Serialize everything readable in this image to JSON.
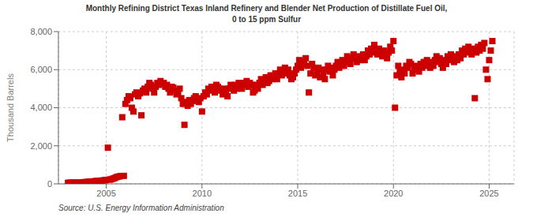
{
  "chart_data": {
    "type": "scatter",
    "title": "Monthly Refining District Texas Inland Refinery and Blender Net Production of Distillate Fuel Oil,\n0 to 15 ppm Sulfur",
    "ylabel": "Thousand Barrels",
    "annotations": [
      "Source: U.S. Energy Information Administration"
    ],
    "color": "#cc0000",
    "marker": "square",
    "grid": true,
    "xlim": [
      2002.5,
      2026.3
    ],
    "xticks": [
      2005,
      2010,
      2015,
      2020,
      2025
    ],
    "ylim": [
      0,
      8000
    ],
    "yticks": [
      0,
      {
        "value": 2000,
        "label": "2,000"
      },
      {
        "value": 4000,
        "label": "4,000"
      },
      {
        "value": 6000,
        "label": "6,000"
      },
      {
        "value": 8000,
        "label": "8,000"
      }
    ],
    "x": [
      2003.0,
      2003.083,
      2003.167,
      2003.25,
      2003.333,
      2003.417,
      2003.5,
      2003.583,
      2003.667,
      2003.75,
      2003.833,
      2003.917,
      2004.0,
      2004.083,
      2004.167,
      2004.25,
      2004.333,
      2004.417,
      2004.5,
      2004.583,
      2004.667,
      2004.75,
      2004.833,
      2004.917,
      2005.0,
      2005.083,
      2005.167,
      2005.25,
      2005.333,
      2005.417,
      2005.5,
      2005.583,
      2005.667,
      2005.75,
      2005.833,
      2005.917,
      2006.0,
      2006.083,
      2006.167,
      2006.25,
      2006.333,
      2006.417,
      2006.5,
      2006.583,
      2006.667,
      2006.75,
      2006.833,
      2006.917,
      2007.0,
      2007.083,
      2007.167,
      2007.25,
      2007.333,
      2007.417,
      2007.5,
      2007.583,
      2007.667,
      2007.75,
      2007.833,
      2007.917,
      2008.0,
      2008.083,
      2008.167,
      2008.25,
      2008.333,
      2008.417,
      2008.5,
      2008.583,
      2008.667,
      2008.75,
      2008.833,
      2008.917,
      2009.0,
      2009.083,
      2009.167,
      2009.25,
      2009.333,
      2009.417,
      2009.5,
      2009.583,
      2009.667,
      2009.75,
      2009.833,
      2009.917,
      2010.0,
      2010.083,
      2010.167,
      2010.25,
      2010.333,
      2010.417,
      2010.5,
      2010.583,
      2010.667,
      2010.75,
      2010.833,
      2010.917,
      2011.0,
      2011.083,
      2011.167,
      2011.25,
      2011.333,
      2011.417,
      2011.5,
      2011.583,
      2011.667,
      2011.75,
      2011.833,
      2011.917,
      2012.0,
      2012.083,
      2012.167,
      2012.25,
      2012.333,
      2012.417,
      2012.5,
      2012.583,
      2012.667,
      2012.75,
      2012.833,
      2012.917,
      2013.0,
      2013.083,
      2013.167,
      2013.25,
      2013.333,
      2013.417,
      2013.5,
      2013.583,
      2013.667,
      2013.75,
      2013.833,
      2013.917,
      2014.0,
      2014.083,
      2014.167,
      2014.25,
      2014.333,
      2014.417,
      2014.5,
      2014.583,
      2014.667,
      2014.75,
      2014.833,
      2014.917,
      2015.0,
      2015.083,
      2015.167,
      2015.25,
      2015.333,
      2015.417,
      2015.5,
      2015.583,
      2015.667,
      2015.75,
      2015.833,
      2015.917,
      2016.0,
      2016.083,
      2016.167,
      2016.25,
      2016.333,
      2016.417,
      2016.5,
      2016.583,
      2016.667,
      2016.75,
      2016.833,
      2016.917,
      2017.0,
      2017.083,
      2017.167,
      2017.25,
      2017.333,
      2017.417,
      2017.5,
      2017.583,
      2017.667,
      2017.75,
      2017.833,
      2017.917,
      2018.0,
      2018.083,
      2018.167,
      2018.25,
      2018.333,
      2018.417,
      2018.5,
      2018.583,
      2018.667,
      2018.75,
      2018.833,
      2018.917,
      2019.0,
      2019.083,
      2019.167,
      2019.25,
      2019.333,
      2019.417,
      2019.5,
      2019.583,
      2019.667,
      2019.75,
      2019.833,
      2019.917,
      2020.0,
      2020.083,
      2020.167,
      2020.25,
      2020.333,
      2020.417,
      2020.5,
      2020.583,
      2020.667,
      2020.75,
      2020.833,
      2020.917,
      2021.0,
      2021.083,
      2021.167,
      2021.25,
      2021.333,
      2021.417,
      2021.5,
      2021.583,
      2021.667,
      2021.75,
      2021.833,
      2021.917,
      2022.0,
      2022.083,
      2022.167,
      2022.25,
      2022.333,
      2022.417,
      2022.5,
      2022.583,
      2022.667,
      2022.75,
      2022.833,
      2022.917,
      2023.0,
      2023.083,
      2023.167,
      2023.25,
      2023.333,
      2023.417,
      2023.5,
      2023.583,
      2023.667,
      2023.75,
      2023.833,
      2023.917,
      2024.0,
      2024.083,
      2024.167,
      2024.25,
      2024.333,
      2024.417,
      2024.5,
      2024.583,
      2024.667,
      2024.75,
      2024.833,
      2024.917,
      2025.0,
      2025.083,
      2025.167
    ],
    "values": [
      55,
      60,
      58,
      62,
      65,
      58,
      55,
      68,
      62,
      75,
      85,
      95,
      100,
      105,
      120,
      115,
      130,
      140,
      150,
      145,
      160,
      170,
      180,
      190,
      210,
      1900,
      225,
      235,
      270,
      295,
      340,
      370,
      390,
      410,
      3500,
      420,
      4200,
      4400,
      4600,
      4500,
      4000,
      3800,
      4700,
      4800,
      4600,
      4750,
      3600,
      4900,
      5000,
      4800,
      5100,
      5300,
      5200,
      5000,
      4800,
      5100,
      5300,
      5200,
      5400,
      5250,
      5300,
      5100,
      5200,
      5000,
      4800,
      5100,
      5050,
      4900,
      4700,
      4800,
      5000,
      4500,
      4200,
      3100,
      4300,
      4100,
      4400,
      4200,
      4350,
      4500,
      4600,
      4400,
      4300,
      4500,
      3800,
      4600,
      4800,
      4700,
      5000,
      4900,
      5100,
      5000,
      4800,
      5200,
      5100,
      5000,
      4900,
      4700,
      5000,
      4800,
      4600,
      5000,
      5200,
      5100,
      4900,
      5200,
      5000,
      5300,
      5100,
      5000,
      5300,
      5200,
      5400,
      5100,
      5300,
      5200,
      4800,
      4900,
      5200,
      5000,
      5300,
      5500,
      5200,
      5400,
      5600,
      5300,
      5400,
      5700,
      5500,
      5600,
      5800,
      5500,
      5800,
      6000,
      5700,
      5900,
      6100,
      5800,
      6000,
      5700,
      5500,
      5600,
      5800,
      6000,
      6200,
      6500,
      6100,
      6400,
      6300,
      6600,
      6200,
      4800,
      5800,
      6300,
      6100,
      5700,
      5900,
      6100,
      5600,
      6000,
      5800,
      5500,
      6000,
      6200,
      5900,
      6100,
      5700,
      6000,
      6200,
      6400,
      6100,
      6300,
      6500,
      6200,
      6400,
      6700,
      6500,
      6300,
      6600,
      6800,
      6600,
      6400,
      6700,
      6500,
      6600,
      6800,
      6500,
      6700,
      7000,
      6800,
      7100,
      6900,
      7300,
      7000,
      6800,
      7100,
      6900,
      6700,
      7000,
      6800,
      6600,
      6900,
      7200,
      7000,
      7500,
      4000,
      5700,
      6200,
      5900,
      5600,
      6000,
      5800,
      6200,
      6100,
      6400,
      6300,
      5800,
      6000,
      6200,
      6100,
      5900,
      6300,
      6100,
      6400,
      6200,
      6500,
      6300,
      6100,
      6400,
      6200,
      6500,
      6700,
      6400,
      6600,
      6300,
      6100,
      6500,
      6300,
      6700,
      6500,
      6800,
      6600,
      6400,
      6700,
      6500,
      6800,
      6600,
      7000,
      6800,
      7100,
      6900,
      7200,
      7000,
      6800,
      7100,
      4500,
      6900,
      7200,
      7000,
      7300,
      7100,
      7400,
      6000,
      5500,
      6500,
      7000,
      7500
    ]
  }
}
